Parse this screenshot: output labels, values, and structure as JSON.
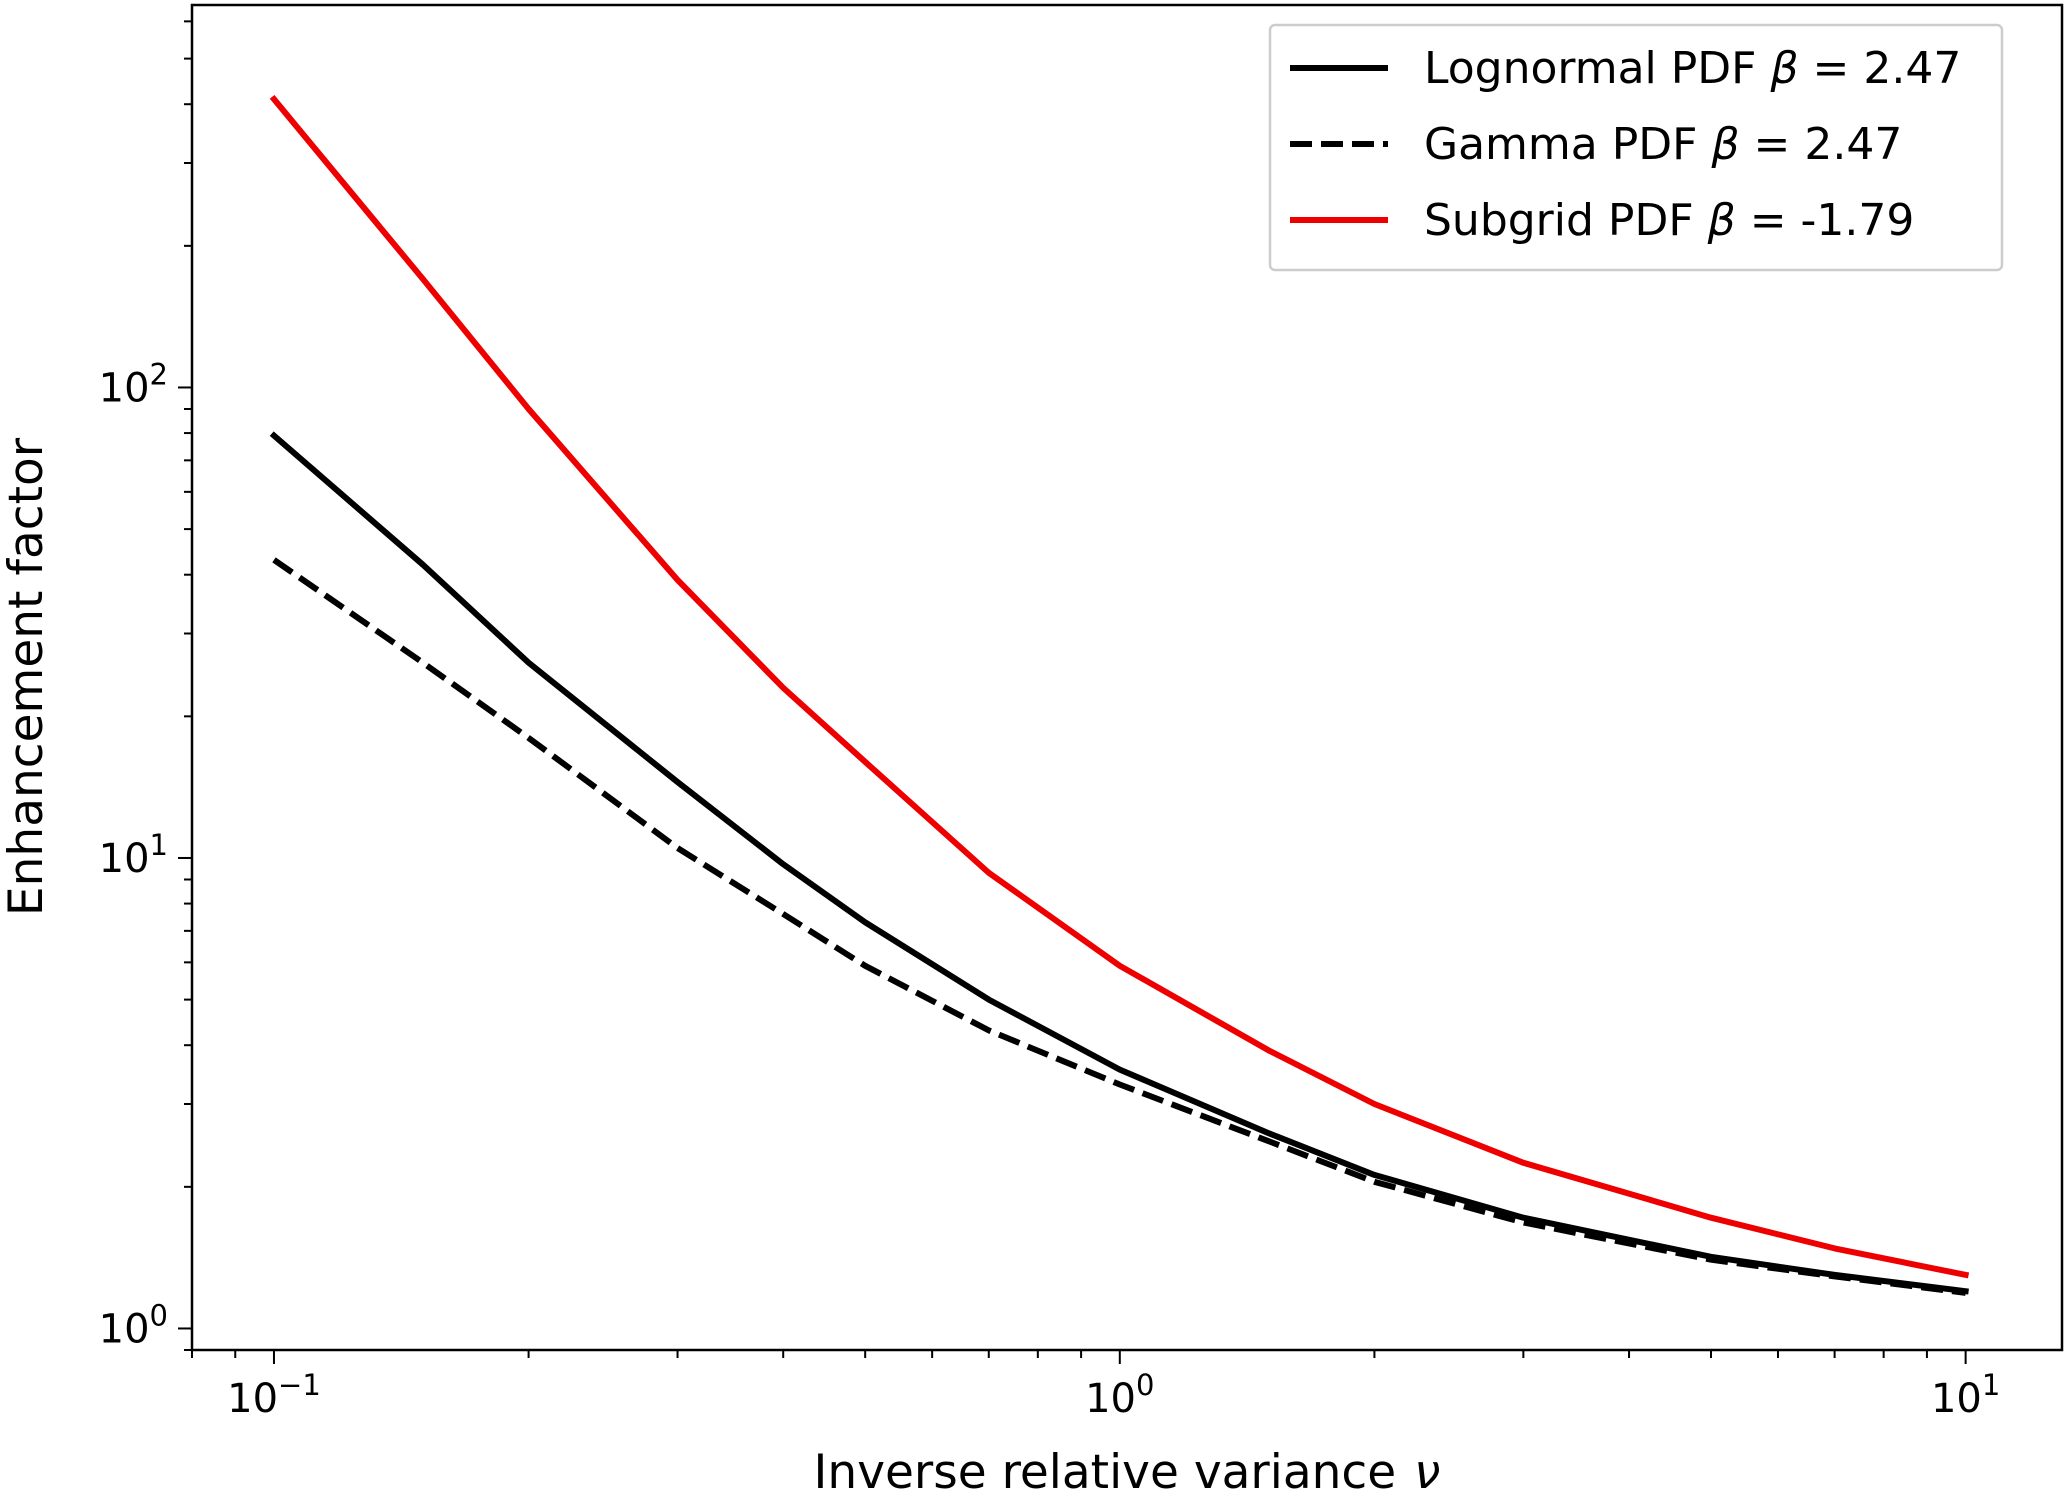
{
  "chart_data": {
    "type": "line",
    "xlabel": "Inverse relative variance",
    "xlabel_symbol": "ν",
    "ylabel": "Enhancement factor",
    "xscale": "log",
    "yscale": "log",
    "xlim": [
      0.08,
      13
    ],
    "ylim": [
      0.9,
      650
    ],
    "x_ticks": [
      {
        "base": "10",
        "exp": "−1",
        "value": 0.1
      },
      {
        "base": "10",
        "exp": "0",
        "value": 1
      },
      {
        "base": "10",
        "exp": "1",
        "value": 10
      }
    ],
    "y_ticks": [
      {
        "base": "10",
        "exp": "0",
        "value": 1
      },
      {
        "base": "10",
        "exp": "1",
        "value": 10
      },
      {
        "base": "10",
        "exp": "2",
        "value": 100
      }
    ],
    "grid": false,
    "legend_position": "top-right",
    "series": [
      {
        "name": "Lognormal PDF",
        "beta_label": "β = 2.47",
        "color": "#000000",
        "style": "solid",
        "x": [
          0.1,
          0.15,
          0.2,
          0.3,
          0.4,
          0.5,
          0.7,
          1.0,
          1.5,
          2.0,
          3.0,
          5.0,
          7.0,
          10.0
        ],
        "y": [
          79,
          42,
          26,
          14.5,
          9.7,
          7.3,
          5.0,
          3.55,
          2.6,
          2.12,
          1.72,
          1.42,
          1.3,
          1.2
        ]
      },
      {
        "name": "Gamma PDF",
        "beta_label": "β = 2.47",
        "color": "#000000",
        "style": "dashed",
        "x": [
          0.1,
          0.15,
          0.2,
          0.3,
          0.4,
          0.5,
          0.7,
          1.0,
          1.5,
          2.0,
          3.0,
          5.0,
          7.0,
          10.0
        ],
        "y": [
          43,
          26,
          18,
          10.5,
          7.6,
          5.9,
          4.3,
          3.3,
          2.5,
          2.05,
          1.68,
          1.4,
          1.29,
          1.19
        ]
      },
      {
        "name": "Subgrid PDF",
        "beta_label": "β = -1.79",
        "color": "#ee0000",
        "style": "solid",
        "x": [
          0.1,
          0.15,
          0.2,
          0.3,
          0.4,
          0.5,
          0.7,
          1.0,
          1.5,
          2.0,
          3.0,
          5.0,
          7.0,
          10.0
        ],
        "y": [
          410,
          170,
          90,
          39,
          23,
          16,
          9.3,
          5.9,
          3.9,
          3.0,
          2.25,
          1.72,
          1.48,
          1.3
        ]
      }
    ]
  }
}
